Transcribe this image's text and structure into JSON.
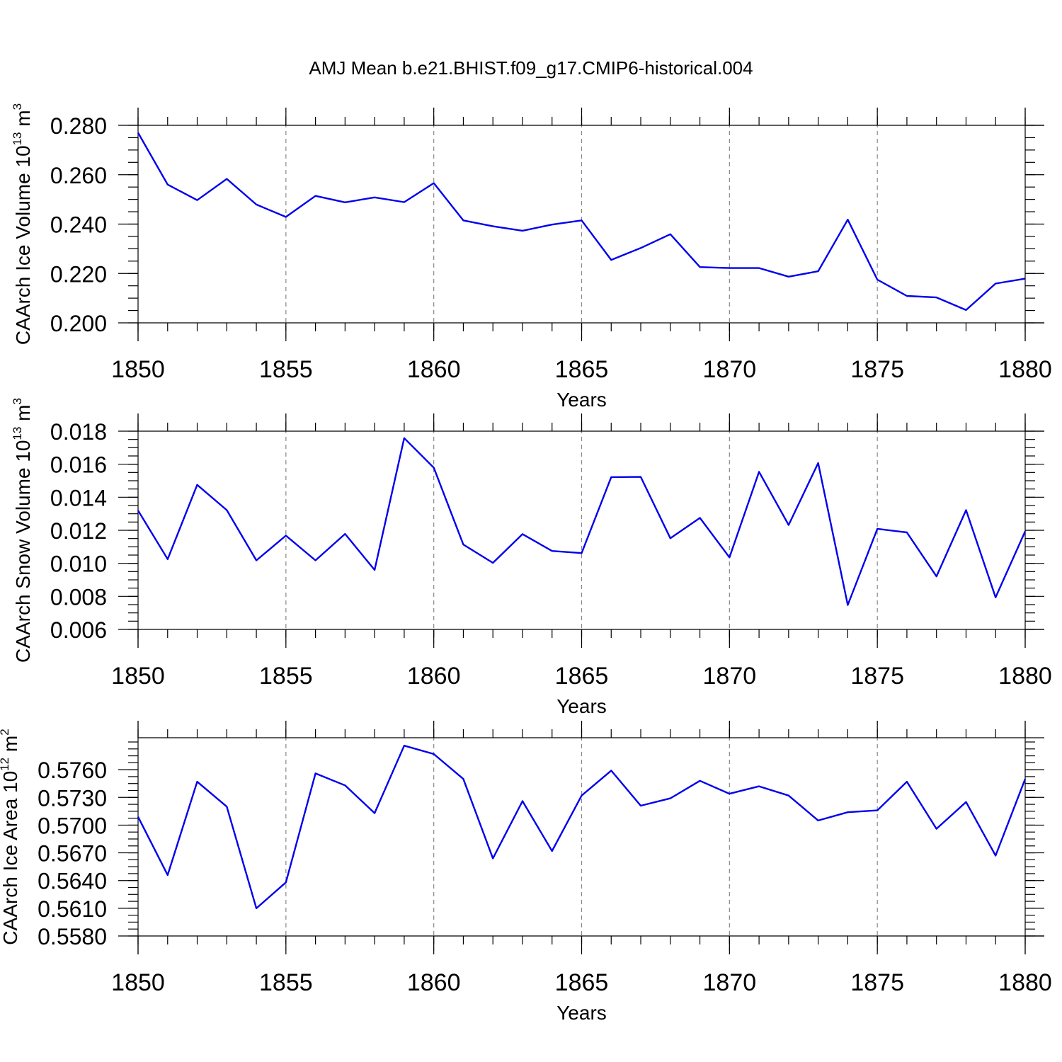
{
  "figure_title": "AMJ Mean b.e21.BHIST.f09_g17.CMIP6-historical.004",
  "colors": {
    "series": "#0000ee",
    "grid": "#888888",
    "axis": "#000000"
  },
  "chart_data": [
    {
      "type": "line",
      "ylabel": "CAArch Ice Volume 10",
      "ylabel_exp": "13",
      "ylabel_unit": "m",
      "ylabel_unit_exp": "3",
      "xlabel": "Years",
      "xlim": [
        1850,
        1880
      ],
      "ylim": [
        0.2,
        0.28
      ],
      "xticks": [
        "1850",
        "1855",
        "1860",
        "1865",
        "1870",
        "1875",
        "1880"
      ],
      "yticks": [
        "0.200",
        "0.220",
        "0.240",
        "0.260",
        "0.280"
      ],
      "grid": "vertical dashed at major x ticks",
      "x": [
        1850,
        1851,
        1852,
        1853,
        1854,
        1855,
        1856,
        1857,
        1858,
        1859,
        1860,
        1861,
        1862,
        1863,
        1864,
        1865,
        1866,
        1867,
        1868,
        1869,
        1870,
        1871,
        1872,
        1873,
        1874,
        1875,
        1876,
        1877,
        1878,
        1879,
        1880
      ],
      "values": [
        0.277,
        0.256,
        0.2497,
        0.2583,
        0.2479,
        0.2429,
        0.2514,
        0.2488,
        0.2508,
        0.2489,
        0.2566,
        0.2415,
        0.2391,
        0.2373,
        0.2398,
        0.2415,
        0.2255,
        0.2303,
        0.2359,
        0.2226,
        0.2222,
        0.2222,
        0.2187,
        0.2209,
        0.2418,
        0.2175,
        0.2109,
        0.2103,
        0.2052,
        0.2159,
        0.2179
      ]
    },
    {
      "type": "line",
      "ylabel": "CAArch Snow Volume 10",
      "ylabel_exp": "13",
      "ylabel_unit": "m",
      "ylabel_unit_exp": "3",
      "xlabel": "Years",
      "xlim": [
        1850,
        1880
      ],
      "ylim": [
        0.006,
        0.018
      ],
      "xticks": [
        "1850",
        "1855",
        "1860",
        "1865",
        "1870",
        "1875",
        "1880"
      ],
      "yticks": [
        "0.006",
        "0.008",
        "0.010",
        "0.012",
        "0.014",
        "0.016",
        "0.018"
      ],
      "grid": "vertical dashed at major x ticks",
      "x": [
        1850,
        1851,
        1852,
        1853,
        1854,
        1855,
        1856,
        1857,
        1858,
        1859,
        1860,
        1861,
        1862,
        1863,
        1864,
        1865,
        1866,
        1867,
        1868,
        1869,
        1870,
        1871,
        1872,
        1873,
        1874,
        1875,
        1876,
        1877,
        1878,
        1879,
        1880
      ],
      "values": [
        0.0132,
        0.01025,
        0.01475,
        0.01322,
        0.01018,
        0.01168,
        0.01018,
        0.01178,
        0.0096,
        0.01758,
        0.01579,
        0.01114,
        0.01003,
        0.01177,
        0.01075,
        0.01062,
        0.01522,
        0.01523,
        0.01152,
        0.01275,
        0.01036,
        0.01554,
        0.01232,
        0.01607,
        0.00748,
        0.01209,
        0.01187,
        0.00921,
        0.01322,
        0.00794,
        0.01194
      ]
    },
    {
      "type": "line",
      "ylabel": "CAArch Ice Area 10",
      "ylabel_exp": "12",
      "ylabel_unit": "m",
      "ylabel_unit_exp": "2",
      "xlabel": "Years",
      "xlim": [
        1850,
        1880
      ],
      "ylim": [
        0.558,
        0.579
      ],
      "xticks": [
        "1850",
        "1855",
        "1860",
        "1865",
        "1870",
        "1875",
        "1880"
      ],
      "yticks": [
        "0.5580",
        "0.5610",
        "0.5640",
        "0.5670",
        "0.5700",
        "0.5730",
        "0.5760"
      ],
      "grid": "vertical dashed at major x ticks",
      "x": [
        1850,
        1851,
        1852,
        1853,
        1854,
        1855,
        1856,
        1857,
        1858,
        1859,
        1860,
        1861,
        1862,
        1863,
        1864,
        1865,
        1866,
        1867,
        1868,
        1869,
        1870,
        1871,
        1872,
        1873,
        1874,
        1875,
        1876,
        1877,
        1878,
        1879,
        1880
      ],
      "values": [
        0.5709,
        0.5646,
        0.5747,
        0.572,
        0.561,
        0.5638,
        0.5756,
        0.5743,
        0.5713,
        0.5786,
        0.5777,
        0.575,
        0.5664,
        0.5726,
        0.5672,
        0.5732,
        0.5759,
        0.5721,
        0.5729,
        0.5748,
        0.5734,
        0.5742,
        0.5732,
        0.5705,
        0.5714,
        0.5716,
        0.5747,
        0.5696,
        0.5725,
        0.5667,
        0.575
      ]
    }
  ]
}
